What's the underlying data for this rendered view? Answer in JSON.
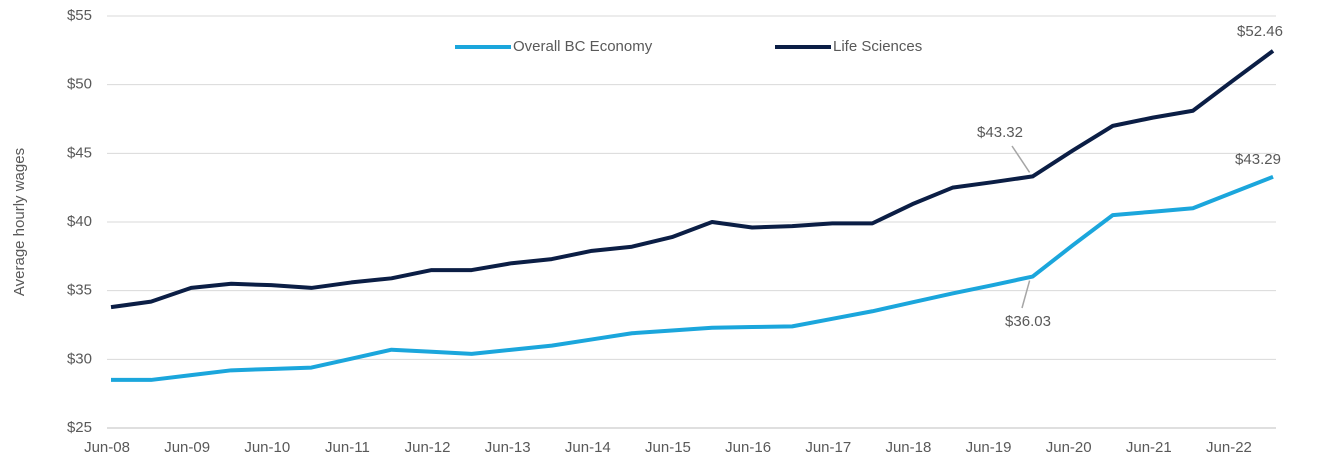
{
  "chart_data": {
    "type": "line",
    "y_label": "Average hourly wages",
    "categories": [
      "Jun-08",
      null,
      "Jun-09",
      null,
      "Jun-10",
      null,
      "Jun-11",
      null,
      "Jun-12",
      null,
      "Jun-13",
      null,
      "Jun-14",
      null,
      "Jun-15",
      null,
      "Jun-16",
      null,
      "Jun-17",
      null,
      "Jun-18",
      null,
      "Jun-19",
      null,
      "Jun-20",
      null,
      "Jun-21",
      null,
      "Jun-22",
      null
    ],
    "series": [
      {
        "name": "Overall BC Economy",
        "color": "#1ba6dc",
        "values": [
          28.5,
          28.5,
          28.85,
          29.2,
          29.3,
          29.4,
          30.05,
          30.7,
          30.55,
          30.4,
          30.7,
          31.0,
          31.45,
          31.9,
          32.1,
          32.3,
          32.35,
          32.4,
          32.95,
          33.5,
          34.15,
          34.8,
          35.4,
          36.03,
          38.3,
          40.5,
          40.75,
          41.0,
          42.15,
          43.29
        ],
        "value_labels": [
          null,
          null,
          null,
          null,
          null,
          null,
          null,
          null,
          null,
          null,
          null,
          null,
          null,
          null,
          null,
          null,
          null,
          null,
          null,
          null,
          null,
          null,
          null,
          "$36.03",
          null,
          null,
          null,
          null,
          null,
          "$43.29"
        ]
      },
      {
        "name": "Life Sciences",
        "color": "#0b1e45",
        "values": [
          33.8,
          34.2,
          35.2,
          35.5,
          35.4,
          35.2,
          35.6,
          35.9,
          36.5,
          36.5,
          37.0,
          37.3,
          37.9,
          38.2,
          38.9,
          40.0,
          39.6,
          39.7,
          39.9,
          39.9,
          41.3,
          42.5,
          42.9,
          43.32,
          45.2,
          47.0,
          47.6,
          48.1,
          50.3,
          52.46
        ],
        "value_labels": [
          null,
          null,
          null,
          null,
          null,
          null,
          null,
          null,
          null,
          null,
          null,
          null,
          null,
          null,
          null,
          null,
          null,
          null,
          null,
          null,
          null,
          null,
          null,
          "$43.32",
          null,
          null,
          null,
          null,
          null,
          "$52.46"
        ]
      }
    ],
    "ylim": [
      25,
      55
    ],
    "yticks": [
      {
        "value": 25,
        "label": "$25"
      },
      {
        "value": 30,
        "label": "$30"
      },
      {
        "value": 35,
        "label": "$35"
      },
      {
        "value": 40,
        "label": "$40"
      },
      {
        "value": 45,
        "label": "$45"
      },
      {
        "value": 50,
        "label": "$50"
      },
      {
        "value": 55,
        "label": "$55"
      }
    ],
    "grid": true,
    "legend": "top"
  }
}
